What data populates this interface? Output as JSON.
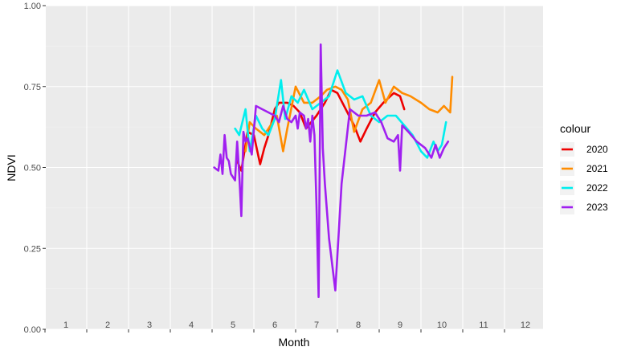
{
  "chart_data": {
    "type": "line",
    "xlabel": "Month",
    "ylabel": "NDVI",
    "ylim": [
      0,
      1
    ],
    "yticks": [
      "0.00",
      "0.25",
      "0.50",
      "0.75",
      "1.00"
    ],
    "xticks": [
      "1",
      "2",
      "3",
      "4",
      "5",
      "6",
      "7",
      "8",
      "9",
      "10",
      "11",
      "12"
    ],
    "grid": true,
    "legend": {
      "title": "colour",
      "position": "right"
    },
    "series": [
      {
        "name": "2020",
        "color": "#ee0000",
        "x": [
          5.1,
          5.2,
          5.35,
          5.5,
          5.65,
          5.75,
          5.85,
          6.0,
          6.1,
          6.3,
          6.45,
          6.6,
          6.75,
          7.0,
          7.2,
          7.35,
          7.5,
          7.7,
          7.9,
          8.05,
          8.2,
          8.4,
          8.6,
          8.85,
          9.0,
          9.1
        ],
        "y": [
          0.52,
          0.49,
          0.61,
          0.6,
          0.51,
          0.56,
          0.6,
          0.68,
          0.7,
          0.7,
          0.69,
          0.67,
          0.62,
          0.66,
          0.7,
          0.74,
          0.73,
          0.68,
          0.63,
          0.58,
          0.62,
          0.67,
          0.7,
          0.73,
          0.72,
          0.68
        ]
      },
      {
        "name": "2021",
        "color": "#ff8c00",
        "x": [
          5.3,
          5.4,
          5.55,
          5.75,
          5.9,
          6.05,
          6.2,
          6.3,
          6.5,
          6.7,
          6.9,
          7.1,
          7.25,
          7.45,
          7.6,
          7.75,
          7.9,
          8.1,
          8.3,
          8.5,
          8.65,
          8.85,
          9.05,
          9.25,
          9.5,
          9.7,
          9.9,
          10.05,
          10.2,
          10.25
        ],
        "y": [
          0.55,
          0.64,
          0.62,
          0.6,
          0.63,
          0.66,
          0.55,
          0.62,
          0.75,
          0.7,
          0.7,
          0.72,
          0.74,
          0.75,
          0.74,
          0.71,
          0.61,
          0.68,
          0.7,
          0.77,
          0.7,
          0.75,
          0.73,
          0.72,
          0.7,
          0.68,
          0.67,
          0.69,
          0.67,
          0.78
        ]
      },
      {
        "name": "2022",
        "color": "#00eeee",
        "x": [
          5.05,
          5.15,
          5.3,
          5.4,
          5.55,
          5.7,
          5.85,
          6.0,
          6.15,
          6.25,
          6.4,
          6.55,
          6.7,
          6.9,
          7.1,
          7.3,
          7.5,
          7.7,
          7.9,
          8.1,
          8.3,
          8.5,
          8.7,
          8.9,
          9.1,
          9.3,
          9.5,
          9.65,
          9.8,
          9.9,
          10.0,
          10.1
        ],
        "y": [
          0.62,
          0.6,
          0.68,
          0.55,
          0.66,
          0.62,
          0.6,
          0.65,
          0.77,
          0.65,
          0.72,
          0.7,
          0.74,
          0.68,
          0.7,
          0.72,
          0.8,
          0.73,
          0.71,
          0.72,
          0.66,
          0.64,
          0.66,
          0.66,
          0.63,
          0.6,
          0.55,
          0.53,
          0.58,
          0.55,
          0.57,
          0.64
        ]
      },
      {
        "name": "2023",
        "color": "#a020f0",
        "x": [
          4.55,
          4.65,
          4.7,
          4.75,
          4.8,
          4.85,
          4.9,
          4.95,
          5.05,
          5.1,
          5.15,
          5.2,
          5.25,
          5.3,
          5.35,
          5.45,
          5.55,
          5.7,
          5.85,
          6.0,
          6.1,
          6.2,
          6.3,
          6.4,
          6.5,
          6.55,
          6.6,
          6.7,
          6.75,
          6.8,
          6.85,
          6.9,
          6.95,
          7.0,
          7.05,
          7.1,
          7.15,
          7.2,
          7.3,
          7.45,
          7.6,
          7.8,
          8.0,
          8.2,
          8.4,
          8.55,
          8.7,
          8.85,
          8.95,
          9.0,
          9.05,
          9.2,
          9.4,
          9.6,
          9.75,
          9.85,
          9.95,
          10.05,
          10.15
        ],
        "y": [
          0.5,
          0.49,
          0.54,
          0.48,
          0.6,
          0.53,
          0.52,
          0.48,
          0.46,
          0.58,
          0.48,
          0.35,
          0.61,
          0.58,
          0.59,
          0.54,
          0.69,
          0.68,
          0.67,
          0.66,
          0.64,
          0.69,
          0.65,
          0.64,
          0.66,
          0.62,
          0.67,
          0.66,
          0.62,
          0.65,
          0.58,
          0.66,
          0.6,
          0.38,
          0.1,
          0.88,
          0.56,
          0.45,
          0.28,
          0.12,
          0.45,
          0.68,
          0.66,
          0.66,
          0.67,
          0.64,
          0.59,
          0.58,
          0.6,
          0.49,
          0.63,
          0.61,
          0.58,
          0.56,
          0.53,
          0.57,
          0.53,
          0.56,
          0.58
        ]
      }
    ]
  }
}
